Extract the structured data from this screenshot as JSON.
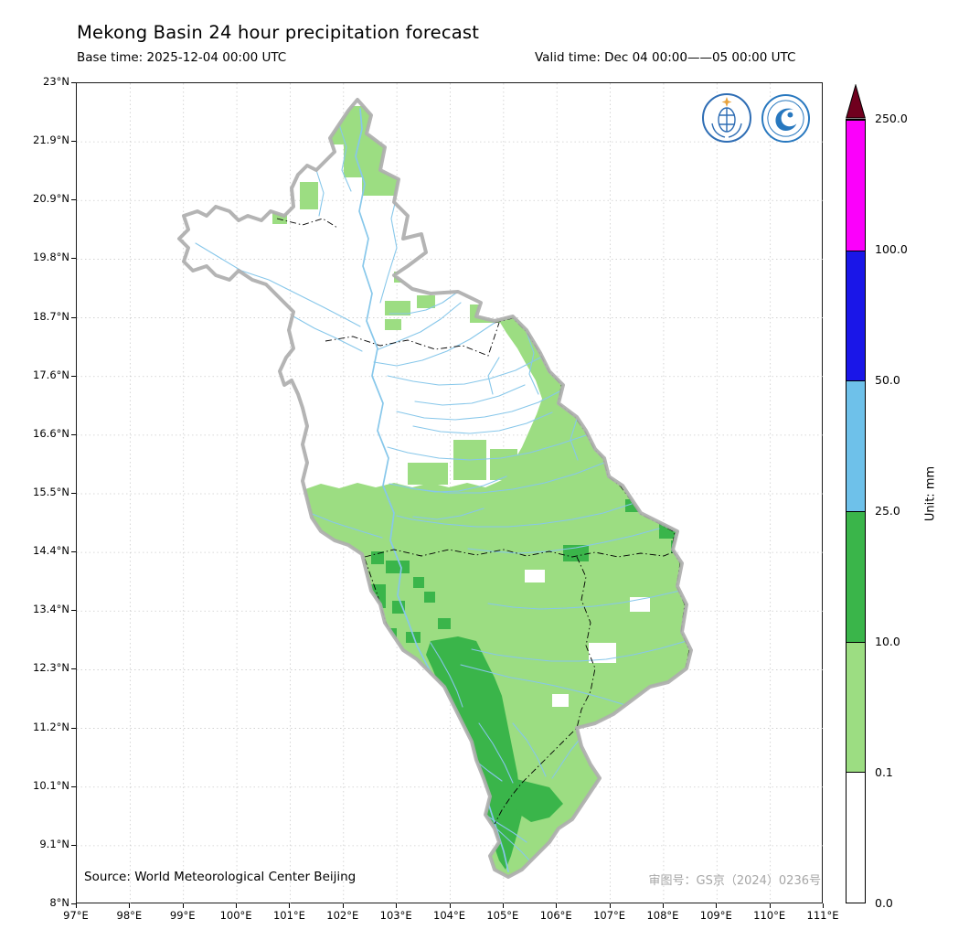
{
  "header": {
    "title": "Mekong Basin 24 hour precipitation forecast",
    "base_time": "Base time: 2025-12-04 00:00 UTC",
    "valid_time": "Valid time: Dec 04 00:00——05 00:00 UTC"
  },
  "footer": {
    "source": "Source: World Meteorological Center Beijing",
    "map_approval": "审图号：GS京（2024）0236号"
  },
  "axes": {
    "x_ticks": [
      "97°E",
      "98°E",
      "99°E",
      "100°E",
      "101°E",
      "102°E",
      "103°E",
      "104°E",
      "105°E",
      "106°E",
      "107°E",
      "108°E",
      "109°E",
      "110°E",
      "111°E"
    ],
    "y_ticks": [
      "23°N",
      "21.9°N",
      "20.9°N",
      "19.8°N",
      "18.7°N",
      "17.6°N",
      "16.6°N",
      "15.5°N",
      "14.4°N",
      "13.4°N",
      "12.3°N",
      "11.2°N",
      "10.1°N",
      "9.1°N",
      "8°N"
    ]
  },
  "colorbar": {
    "unit_label": "Unit: mm",
    "levels": [
      "0.0",
      "0.1",
      "10.0",
      "25.0",
      "50.0",
      "100.0",
      "250.0"
    ],
    "segment_colors": [
      "#ffffff",
      "#9cdd82",
      "#3ab54a",
      "#6ec1ea",
      "#1a16e8",
      "#fb00fb"
    ],
    "arrow_color": "#70001e"
  },
  "map": {
    "region": "Mekong Basin",
    "colors": {
      "basin_outline": "#aeaeae",
      "river": "#87c7ea",
      "border": "#000000",
      "grid": "#cccccc",
      "precip_light": "#9cdd82",
      "precip_mid": "#3ab54a"
    }
  },
  "icons": {
    "wmo_logo": "wmo-logo",
    "cma_logo": "cma-logo"
  }
}
